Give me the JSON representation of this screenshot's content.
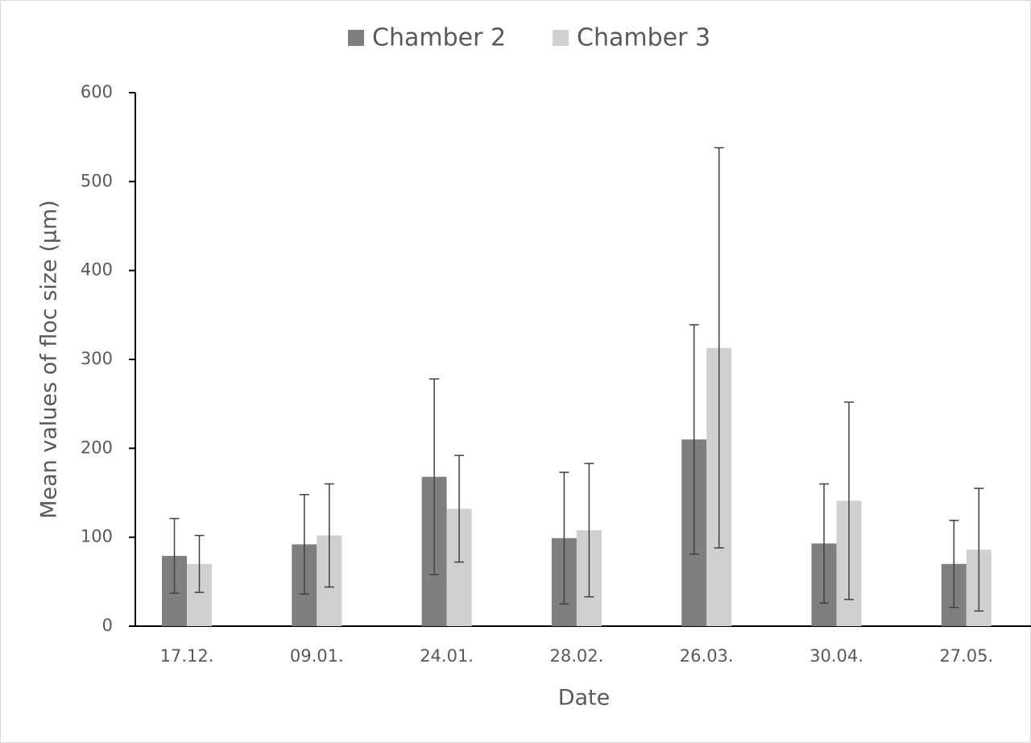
{
  "chart_data": {
    "type": "bar",
    "categories": [
      "17.12.",
      "09.01.",
      "24.01.",
      "28.02.",
      "26.03.",
      "30.04.",
      "27.05."
    ],
    "series": [
      {
        "name": "Chamber 2",
        "color": "#7f7f7f",
        "values": [
          79,
          92,
          168,
          99,
          210,
          93,
          70
        ],
        "errors": [
          42,
          56,
          110,
          74,
          129,
          67,
          49
        ]
      },
      {
        "name": "Chamber 3",
        "color": "#d0d0d0",
        "values": [
          70,
          102,
          132,
          108,
          313,
          141,
          86
        ],
        "errors": [
          32,
          58,
          60,
          75,
          225,
          111,
          69
        ]
      }
    ],
    "ylim": [
      0,
      600
    ],
    "yticks": [
      0,
      100,
      200,
      300,
      400,
      500,
      600
    ],
    "x_label": "Date",
    "y_label": "Mean values of floc size (μm)",
    "legend_position": "top"
  }
}
